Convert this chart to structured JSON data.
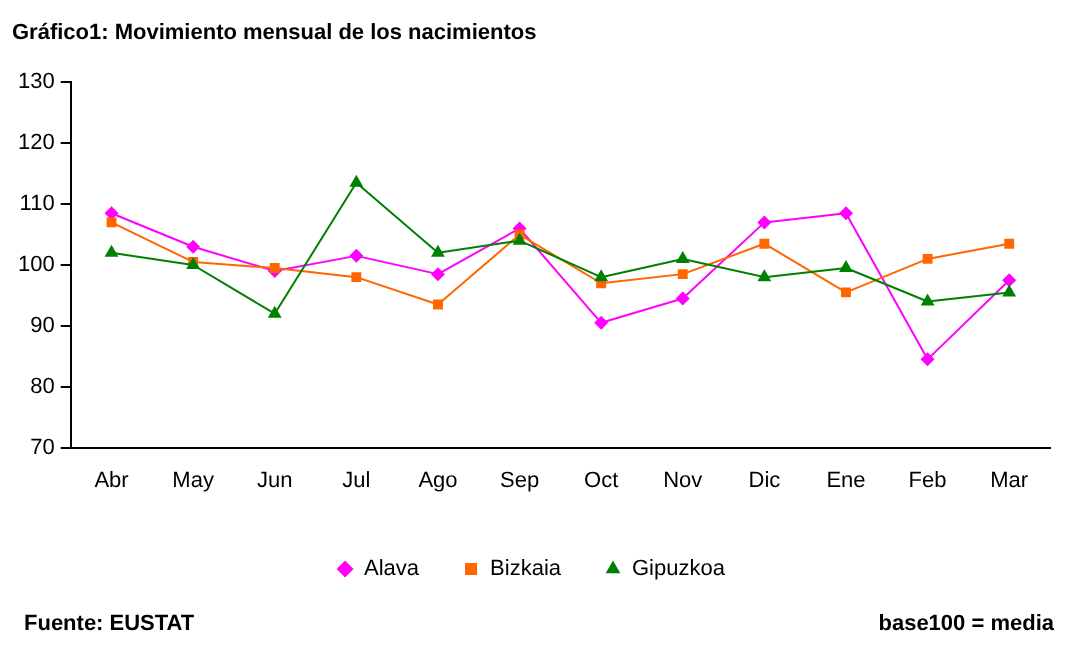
{
  "chart_data": {
    "type": "line",
    "title": "Gráfico1: Movimiento mensual de los nacimientos",
    "categories": [
      "Abr",
      "May",
      "Jun",
      "Jul",
      "Ago",
      "Sep",
      "Oct",
      "Nov",
      "Dic",
      "Ene",
      "Feb",
      "Mar"
    ],
    "series": [
      {
        "name": "Alava",
        "color": "#ff00ff",
        "marker": "diamond",
        "values": [
          108.5,
          103,
          99,
          101.5,
          98.5,
          106,
          90.5,
          94.5,
          107,
          108.5,
          84.5,
          97.5
        ]
      },
      {
        "name": "Bizkaia",
        "color": "#ff6600",
        "marker": "square",
        "values": [
          107,
          100.5,
          99.5,
          98,
          93.5,
          105,
          97,
          98.5,
          103.5,
          95.5,
          101,
          103.5
        ]
      },
      {
        "name": "Gipuzkoa",
        "color": "#008000",
        "marker": "triangle",
        "values": [
          102,
          100,
          92,
          113.5,
          102,
          104,
          98,
          101,
          98,
          99.5,
          94,
          95.5
        ]
      }
    ],
    "ylim": [
      70,
      130
    ],
    "yticks": [
      70,
      80,
      90,
      100,
      110,
      120,
      130
    ],
    "grid": false,
    "legend": "bottom",
    "annotations": [
      "Fuente: EUSTAT",
      "base100 = media"
    ]
  }
}
